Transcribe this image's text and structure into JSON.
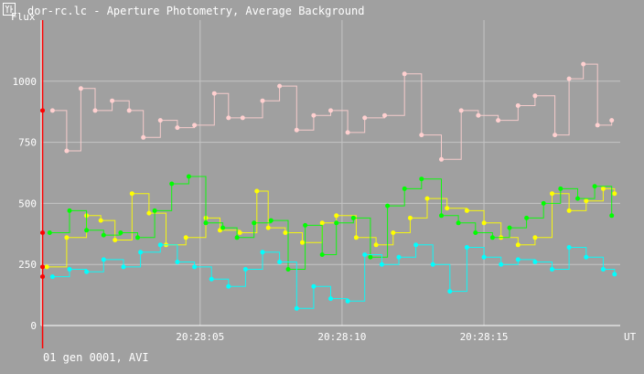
{
  "window": {
    "title": "dor-rc.lc - Aperture Photometry, Average Background",
    "icon": "app-icon"
  },
  "status": {
    "text": "01 gen 0001, AVI"
  },
  "colors": {
    "background": "#a0a0a0",
    "grid": "#c4c4c4",
    "text": "#ffffff",
    "cursor": "#ff0000",
    "series": [
      "#ffd0d0",
      "#ffff00",
      "#00ff00",
      "#00ffff"
    ]
  },
  "chart_data": {
    "type": "scatter",
    "title": "",
    "ylabel": "Flux",
    "xlabel": "UT",
    "ylim": [
      0,
      1250
    ],
    "y_ticks": [
      0,
      250,
      500,
      750,
      1000
    ],
    "y_tick_labels": [
      "0",
      "250",
      "500",
      "750",
      "1000"
    ],
    "x_ticks": [
      5,
      10,
      15
    ],
    "x_tick_labels": [
      "20:28:05",
      "20:28:10",
      "20:28:15"
    ],
    "xlim": [
      -0.6,
      19.8
    ],
    "grid": true,
    "cursor_x": -0.55,
    "series": [
      {
        "color": "#ffd0d0",
        "x": [
          -0.2,
          0.3,
          0.8,
          1.3,
          1.9,
          2.5,
          3.0,
          3.6,
          4.2,
          4.8,
          5.5,
          6.0,
          6.5,
          7.2,
          7.8,
          8.4,
          9.0,
          9.6,
          10.2,
          10.8,
          11.5,
          12.2,
          12.8,
          13.5,
          14.2,
          14.8,
          15.5,
          16.2,
          16.8,
          17.5,
          18.0,
          18.5,
          19.0,
          19.5
        ],
        "y": [
          880,
          715,
          970,
          880,
          920,
          880,
          770,
          840,
          810,
          820,
          950,
          850,
          850,
          920,
          980,
          800,
          860,
          880,
          790,
          850,
          860,
          1030,
          780,
          680,
          880,
          860,
          840,
          900,
          940,
          780,
          1010,
          1070,
          820,
          840
        ]
      },
      {
        "color": "#ffff00",
        "x": [
          -0.4,
          0.3,
          1.0,
          1.5,
          2.0,
          2.6,
          3.2,
          3.8,
          4.5,
          5.2,
          5.7,
          6.4,
          7.0,
          7.4,
          8.0,
          8.6,
          9.3,
          9.8,
          10.5,
          11.2,
          11.8,
          12.4,
          13.0,
          13.7,
          14.4,
          15.0,
          15.6,
          16.2,
          16.8,
          17.4,
          18.0,
          18.6,
          19.2,
          19.6
        ],
        "y": [
          240,
          360,
          450,
          430,
          350,
          540,
          460,
          330,
          360,
          440,
          390,
          380,
          550,
          400,
          380,
          340,
          420,
          450,
          360,
          330,
          380,
          440,
          520,
          480,
          470,
          420,
          360,
          330,
          360,
          540,
          470,
          510,
          560,
          540
        ]
      },
      {
        "color": "#00ff00",
        "x": [
          -0.3,
          0.4,
          1.0,
          1.6,
          2.2,
          2.8,
          3.4,
          4.0,
          4.6,
          5.2,
          5.8,
          6.3,
          6.9,
          7.5,
          8.1,
          8.7,
          9.3,
          9.8,
          10.4,
          11.0,
          11.6,
          12.2,
          12.8,
          13.5,
          14.1,
          14.7,
          15.3,
          15.9,
          16.5,
          17.1,
          17.7,
          18.3,
          18.9,
          19.5
        ],
        "y": [
          380,
          470,
          390,
          370,
          380,
          360,
          470,
          580,
          610,
          420,
          400,
          360,
          420,
          430,
          230,
          410,
          290,
          420,
          440,
          280,
          490,
          560,
          600,
          450,
          420,
          380,
          360,
          400,
          440,
          500,
          560,
          520,
          570,
          450
        ]
      },
      {
        "color": "#00ffff",
        "x": [
          -0.2,
          0.4,
          1.0,
          1.6,
          2.3,
          2.9,
          3.6,
          4.2,
          4.8,
          5.4,
          6.0,
          6.6,
          7.2,
          7.8,
          8.4,
          9.0,
          9.6,
          10.2,
          10.8,
          11.4,
          12.0,
          12.6,
          13.2,
          13.8,
          14.4,
          15.0,
          15.6,
          16.2,
          16.8,
          17.4,
          18.0,
          18.6,
          19.2,
          19.6
        ],
        "y": [
          200,
          230,
          220,
          270,
          240,
          300,
          330,
          260,
          240,
          190,
          160,
          230,
          300,
          260,
          70,
          160,
          110,
          100,
          290,
          250,
          280,
          330,
          250,
          140,
          320,
          280,
          250,
          270,
          260,
          230,
          320,
          280,
          230,
          210
        ]
      }
    ]
  }
}
